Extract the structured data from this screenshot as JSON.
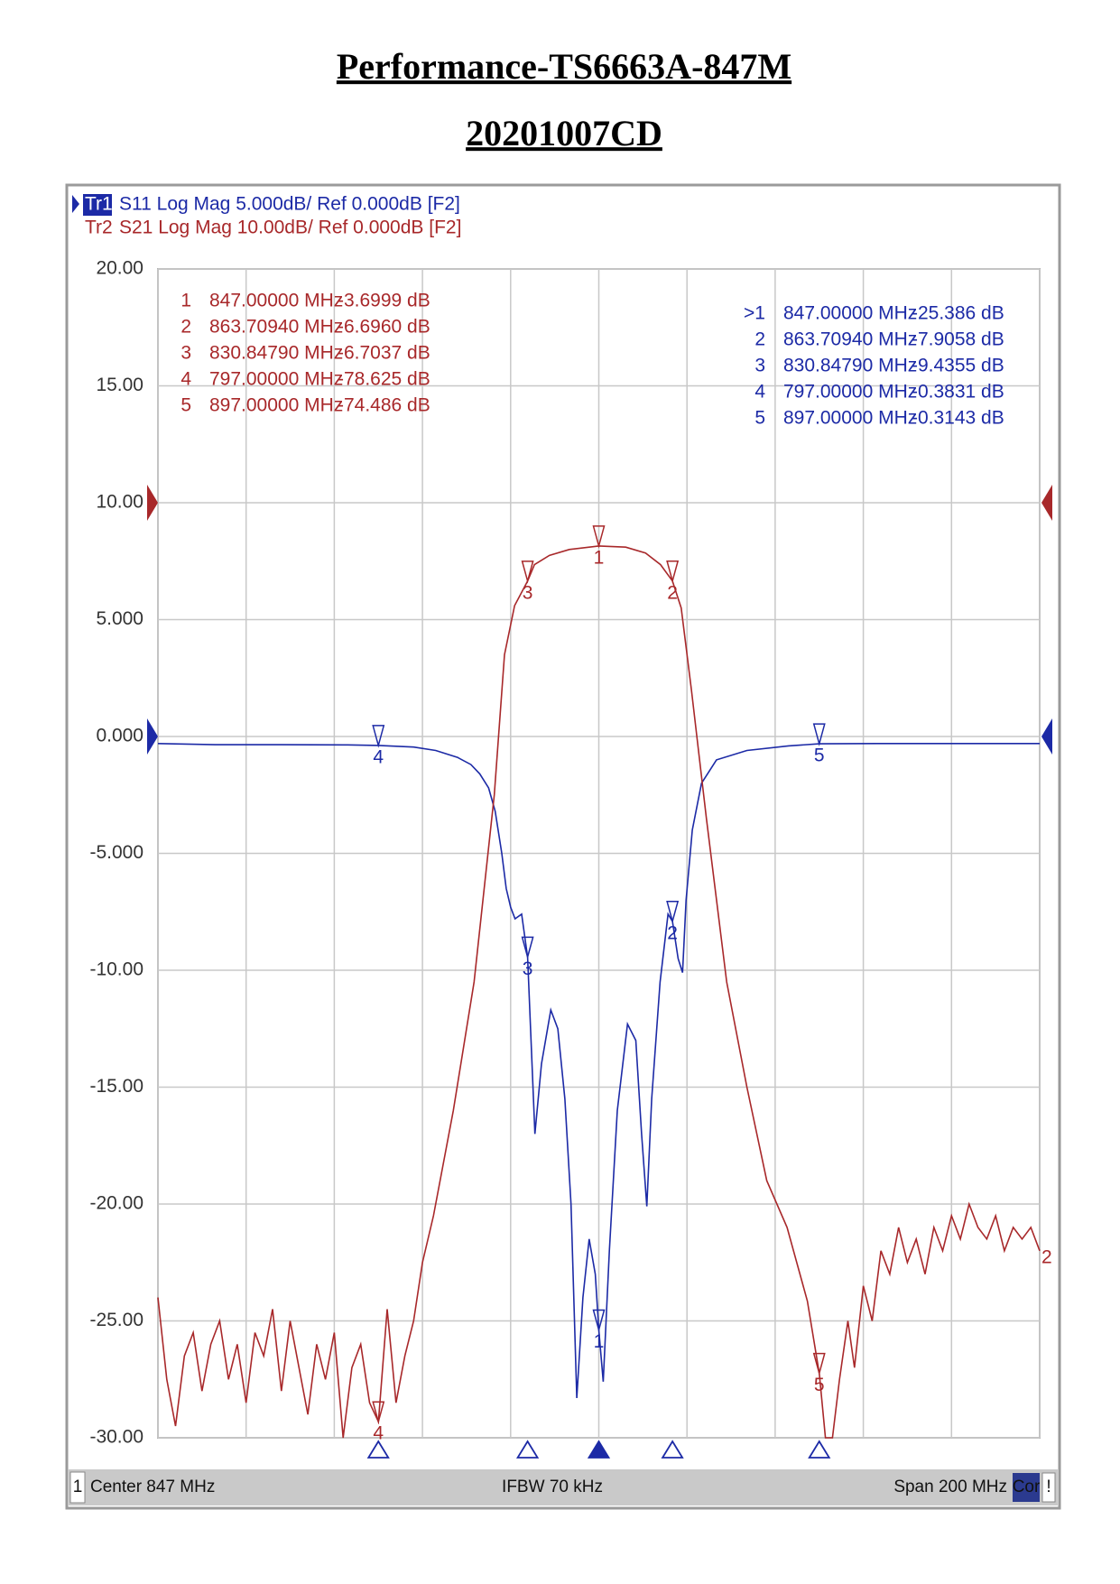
{
  "chart_data": {
    "type": "line",
    "title": "Performance-TS6663A-847M",
    "subtitle": "20201007CD",
    "xlim": [
      747,
      947
    ],
    "xticks": [
      747,
      767,
      787,
      807,
      827,
      847,
      867,
      887,
      907,
      927,
      947
    ],
    "ylim": [
      -30,
      20
    ],
    "yticks": [
      {
        "value": 20,
        "label": "20.00"
      },
      {
        "value": 15,
        "label": "15.00"
      },
      {
        "value": 10,
        "label": "10.00"
      },
      {
        "value": 5,
        "label": "5.000"
      },
      {
        "value": 0,
        "label": "0.000"
      },
      {
        "value": -5,
        "label": "-5.000"
      },
      {
        "value": -10,
        "label": "-10.00"
      },
      {
        "value": -15,
        "label": "-15.00"
      },
      {
        "value": -20,
        "label": "-20.00"
      },
      {
        "value": -25,
        "label": "-25.00"
      },
      {
        "value": -30,
        "label": "-30.00"
      }
    ],
    "y2lim": [
      -80,
      20
    ],
    "grid": true,
    "series": [
      {
        "name": "Tr1",
        "header": "S11 Log Mag 5.000dB/ Ref 0.000dB [F2]",
        "color": "#1c2aa6",
        "ref": 0,
        "active": true,
        "x": [
          747,
          760,
          775,
          790,
          797,
          805,
          810,
          815,
          818,
          820,
          822,
          823.5,
          825,
          826,
          827,
          828,
          829.5,
          830.8479,
          832.5,
          834,
          836.1,
          837.7,
          839.3,
          840.7,
          842,
          843.4,
          844.8,
          846.2,
          847,
          848,
          849.4,
          851.2,
          853.5,
          855.4,
          856.7,
          857.9,
          859,
          860.9,
          862.7,
          863.7094,
          865,
          866,
          866.8,
          868.2,
          870.3,
          873.7,
          880.6,
          890,
          897,
          910,
          930,
          947
        ],
        "values": [
          -0.3,
          -0.35,
          -0.35,
          -0.36,
          -0.3831,
          -0.45,
          -0.6,
          -0.9,
          -1.2,
          -1.6,
          -2.2,
          -3.2,
          -5.0,
          -6.5,
          -7.3,
          -7.8,
          -7.6,
          -9.4355,
          -17,
          -14,
          -11.7,
          -12.5,
          -15.5,
          -20,
          -28.3,
          -24,
          -21.5,
          -23,
          -25.386,
          -27.6,
          -22,
          -16,
          -12.3,
          -13,
          -17,
          -20.1,
          -15.5,
          -10.5,
          -7.6,
          -7.9058,
          -9.5,
          -10.1,
          -7,
          -4,
          -2,
          -1,
          -0.6,
          -0.4,
          -0.3143,
          -0.3,
          -0.3,
          -0.3
        ],
        "markers": [
          {
            "id": ">1",
            "tag": "1",
            "freq": {
              "value": 847,
              "label": "847.00000 MHz"
            },
            "level": {
              "value": -25.386,
              "label": "-25.386 dB"
            }
          },
          {
            "id": "2",
            "tag": "2",
            "freq": {
              "value": 863.7094,
              "label": "863.70940 MHz"
            },
            "level": {
              "value": -7.9058,
              "label": "-7.9058 dB"
            }
          },
          {
            "id": "3",
            "tag": "3",
            "freq": {
              "value": 830.8479,
              "label": "830.84790 MHz"
            },
            "level": {
              "value": -9.4355,
              "label": "-9.4355 dB"
            }
          },
          {
            "id": "4",
            "tag": "4",
            "freq": {
              "value": 797,
              "label": "797.00000 MHz"
            },
            "level": {
              "value": -0.3831,
              "label": "-0.3831 dB"
            }
          },
          {
            "id": "5",
            "tag": "5",
            "freq": {
              "value": 897,
              "label": "897.00000 MHz"
            },
            "level": {
              "value": -0.3143,
              "label": "-0.3143 dB"
            }
          }
        ]
      },
      {
        "name": "Tr2",
        "header": "S21 Log Mag 10.00dB/ Ref 0.000dB [F2]",
        "color": "#a8282a",
        "ref": 0,
        "axis": "y2",
        "end_label": "2",
        "x": [
          747,
          749,
          751,
          753,
          755,
          757,
          759,
          761,
          763,
          765,
          767,
          769,
          771,
          773,
          775,
          777,
          779,
          781,
          783,
          785,
          787,
          789,
          791,
          793,
          795,
          797,
          799,
          801,
          803,
          805,
          807,
          809.5,
          814,
          818.7,
          823.3,
          825.6,
          827.9,
          830.8479,
          832.4,
          835.8,
          840.3,
          847,
          853.1,
          857.6,
          861,
          863.7094,
          865.7,
          868,
          871.4,
          876,
          880.6,
          885.1,
          889.7,
          894.3,
          897,
          898.4,
          900,
          901.6,
          903.5,
          905,
          907,
          909,
          911,
          913,
          915,
          917,
          919,
          921,
          923,
          925,
          927,
          929,
          931,
          933,
          935,
          937,
          939,
          941,
          943,
          945,
          947
        ],
        "values": [
          -68,
          -75,
          -79,
          -73,
          -71,
          -76,
          -72,
          -70,
          -75,
          -72,
          -77,
          -71,
          -73,
          -69,
          -76,
          -70,
          -74,
          -78,
          -72,
          -75,
          -71,
          -80,
          -74,
          -72,
          -77,
          -78.625,
          -69,
          -77,
          -73,
          -70,
          -65,
          -61,
          -52,
          -41,
          -25,
          -13,
          -8.8,
          -6.7037,
          -5.3,
          -4.5,
          -4.0,
          -3.6999,
          -3.8,
          -4.3,
          -5.3,
          -6.696,
          -9,
          -16,
          -27,
          -41,
          -50,
          -58,
          -62,
          -68.3,
          -74.486,
          -80,
          -80,
          -75,
          -70,
          -74,
          -67,
          -70,
          -64,
          -66,
          -62,
          -65,
          -63,
          -66,
          -62,
          -64,
          -61,
          -63,
          -60,
          -62,
          -63,
          -61,
          -64,
          -62,
          -63,
          -62,
          -64
        ],
        "markers": [
          {
            "id": "1",
            "tag": "1",
            "freq": {
              "value": 847,
              "label": "847.00000 MHz"
            },
            "level": {
              "value": -3.6999,
              "label": "-3.6999 dB"
            }
          },
          {
            "id": "2",
            "tag": "2",
            "freq": {
              "value": 863.7094,
              "label": "863.70940 MHz"
            },
            "level": {
              "value": -6.696,
              "label": "-6.6960 dB"
            }
          },
          {
            "id": "3",
            "tag": "3",
            "freq": {
              "value": 830.8479,
              "label": "830.84790 MHz"
            },
            "level": {
              "value": -6.7037,
              "label": "-6.7037 dB"
            }
          },
          {
            "id": "4",
            "tag": "4",
            "freq": {
              "value": 797,
              "label": "797.00000 MHz"
            },
            "level": {
              "value": -78.625,
              "label": "-78.625 dB"
            }
          },
          {
            "id": "5",
            "tag": "5",
            "freq": {
              "value": 897,
              "label": "897.00000 MHz"
            },
            "level": {
              "value": -74.486,
              "label": "-74.486 dB"
            }
          }
        ]
      }
    ],
    "footer": {
      "channel": "1",
      "center": "Center 847 MHz",
      "ifbw": "IFBW 70 kHz",
      "span": "Span 200 MHz",
      "cor": "Cor",
      "warn": "!"
    }
  }
}
